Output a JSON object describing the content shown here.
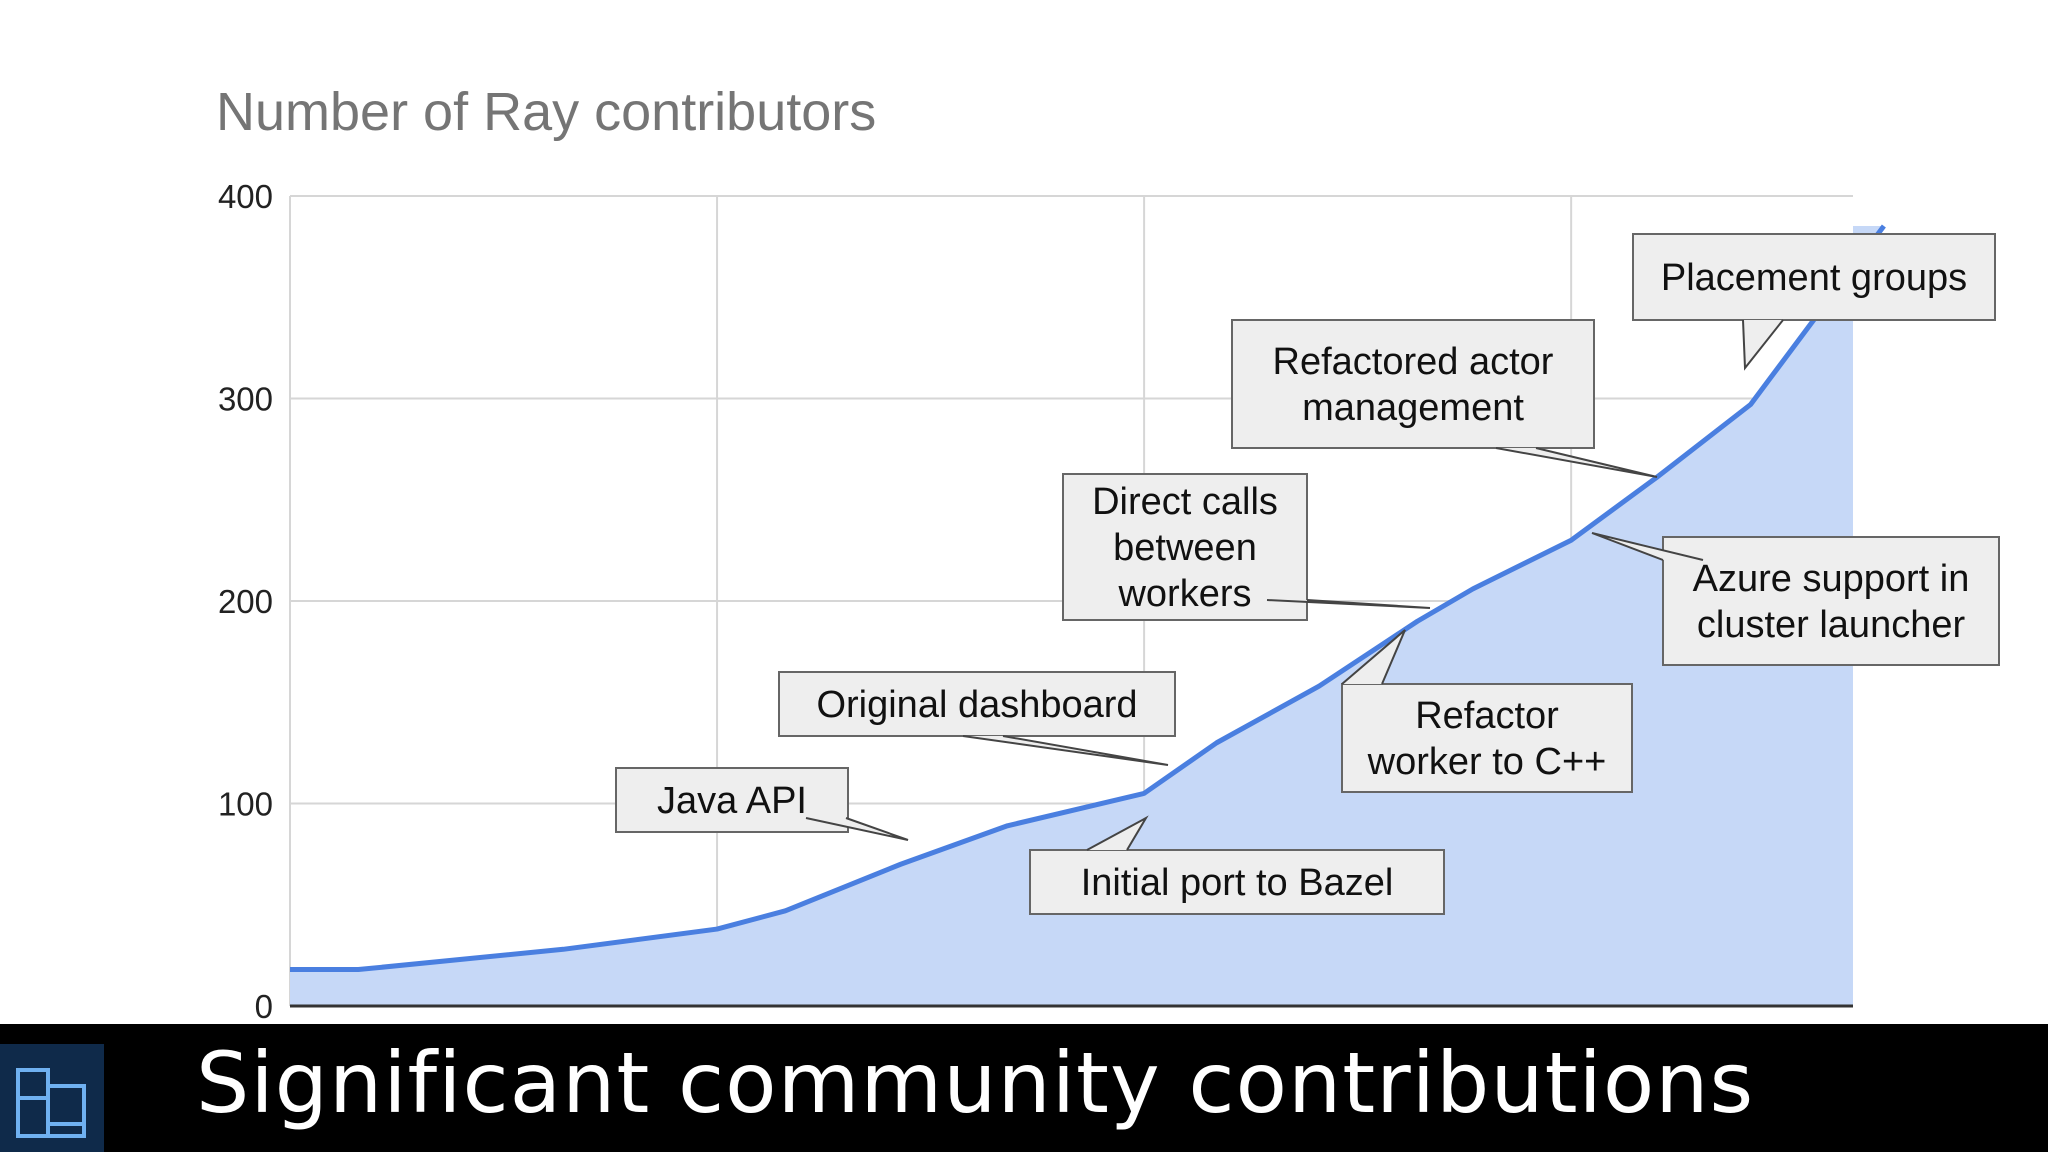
{
  "chart_data": {
    "type": "area",
    "title": "Number of Ray contributors",
    "xlabel": "",
    "ylabel": "",
    "ylim": [
      0,
      400
    ],
    "yticks": [
      0,
      100,
      200,
      300,
      400
    ],
    "grid": true,
    "colors": {
      "line": "#4a7fe0",
      "fill": "#c6d8f7",
      "grid": "#d6d6d6",
      "axis": "#333333"
    },
    "x": [
      0,
      0.16,
      0.64,
      1.0,
      1.16,
      1.43,
      1.68,
      2.0,
      2.17,
      2.41,
      2.64,
      2.77,
      3.0,
      3.2,
      3.42,
      3.59
    ],
    "values": [
      18,
      18,
      28,
      38,
      47,
      70,
      89,
      105,
      130,
      158,
      190,
      206,
      230,
      261,
      297,
      345
    ],
    "annotations": [
      {
        "text": [
          "Java API"
        ],
        "x": 1.45,
        "y": 81
      },
      {
        "text": [
          "Original dashboard"
        ],
        "x": 2.06,
        "y": 118
      },
      {
        "text": [
          "Initial port to Bazel"
        ],
        "x": 1.88,
        "y": 95
      },
      {
        "text": [
          "Direct calls",
          "between",
          "workers"
        ],
        "x": 2.68,
        "y": 197
      },
      {
        "text": [
          "Refactor",
          "worker to C++"
        ],
        "x": 2.61,
        "y": 189
      },
      {
        "text": [
          "Refactored actor",
          "management"
        ],
        "x": 3.2,
        "y": 261
      },
      {
        "text": [
          "Azure support in",
          "cluster launcher"
        ],
        "x": 3.04,
        "y": 233
      },
      {
        "text": [
          "Placement groups"
        ],
        "x": 3.4,
        "y": 314
      }
    ]
  },
  "footer": {
    "caption": "Significant community contributions",
    "logo_icon": "dashboard-grid-icon"
  }
}
